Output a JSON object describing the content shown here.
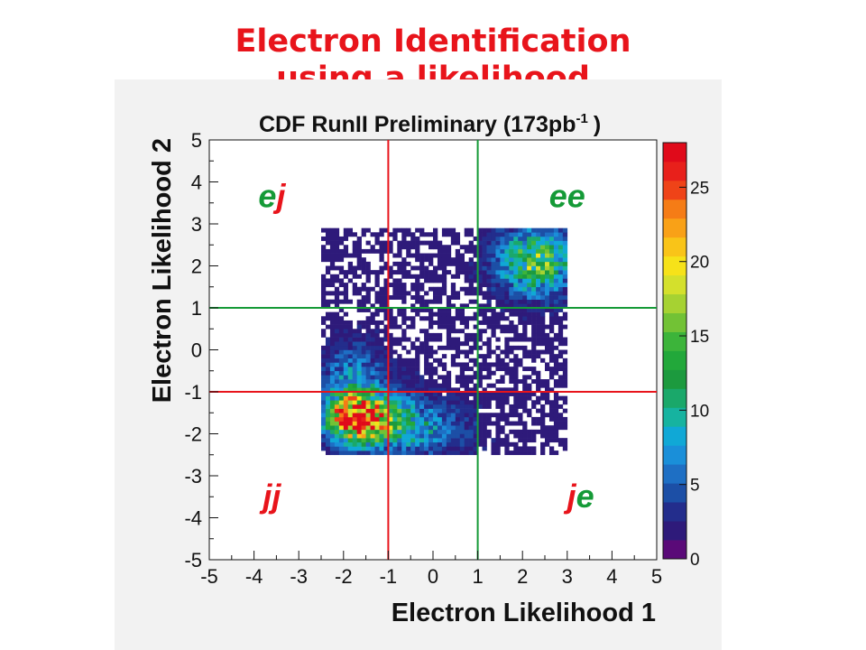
{
  "slide": {
    "title_line1": "Electron Identification",
    "title_line2": "using a likelihood"
  },
  "chart_data": {
    "type": "heatmap",
    "title_main": "CDF RunII Preliminary (173pb",
    "title_exp": "-1",
    "title_end": ")",
    "xlabel": "Electron Likelihood 1",
    "ylabel": "Electron Likelihood 2",
    "xlim": [
      -5,
      5
    ],
    "ylim": [
      -5,
      5
    ],
    "xticks": [
      -5,
      -4,
      -3,
      -2,
      -1,
      0,
      1,
      2,
      3,
      4,
      5
    ],
    "yticks": [
      -5,
      -4,
      -3,
      -2,
      -1,
      0,
      1,
      2,
      3,
      4,
      5
    ],
    "zlim": [
      0,
      28
    ],
    "zticks": [
      0,
      5,
      10,
      15,
      20,
      25
    ],
    "colorbar_colors": [
      "#5a0a78",
      "#2e1a7a",
      "#232d8c",
      "#1c4fa6",
      "#1e6fc4",
      "#1a8fd9",
      "#10a8d6",
      "#16b3a0",
      "#1aa86a",
      "#1c9a3e",
      "#22a83a",
      "#3cb43a",
      "#72c235",
      "#a6d232",
      "#d4e02c",
      "#f6e219",
      "#f9c418",
      "#f9a117",
      "#f57c16",
      "#ef4318",
      "#e8201b",
      "#e00a1a"
    ],
    "bin_width": 0.1,
    "density_blobs": [
      {
        "cx": -1.7,
        "cy": -1.6,
        "sx": 0.45,
        "sy": 0.38,
        "amp": 27
      },
      {
        "cx": -0.9,
        "cy": -1.7,
        "sx": 0.55,
        "sy": 0.45,
        "amp": 7
      },
      {
        "cx": -1.8,
        "cy": -0.6,
        "sx": 0.45,
        "sy": 0.5,
        "amp": 5
      },
      {
        "cx": 2.3,
        "cy": 2.1,
        "sx": 0.55,
        "sy": 0.5,
        "amp": 13
      },
      {
        "cx": 0.0,
        "cy": -1.9,
        "sx": 0.6,
        "sy": 0.4,
        "amp": 4
      }
    ],
    "populated_region": {
      "x": [
        -2.5,
        3.0
      ],
      "y": [
        -2.5,
        2.9
      ]
    },
    "cut_lines": [
      {
        "axis": "x",
        "value": -1,
        "color": "#e8141b"
      },
      {
        "axis": "y",
        "value": -1,
        "color": "#e8141b"
      },
      {
        "axis": "x",
        "value": 1,
        "color": "#159a37"
      },
      {
        "axis": "y",
        "value": 1,
        "color": "#159a37"
      }
    ],
    "quadrant_labels": [
      {
        "x": -3.6,
        "y": 3.4,
        "parts": [
          {
            "text": "e",
            "color": "#159a37"
          },
          {
            "text": "j",
            "color": "#e8141b"
          }
        ]
      },
      {
        "x": 3.0,
        "y": 3.4,
        "parts": [
          {
            "text": "ee",
            "color": "#159a37"
          }
        ]
      },
      {
        "x": -3.6,
        "y": -3.75,
        "parts": [
          {
            "text": "jj",
            "color": "#e8141b"
          }
        ]
      },
      {
        "x": 3.3,
        "y": -3.75,
        "parts": [
          {
            "text": "j",
            "color": "#e8141b"
          },
          {
            "text": "e",
            "color": "#159a37"
          }
        ]
      }
    ]
  }
}
